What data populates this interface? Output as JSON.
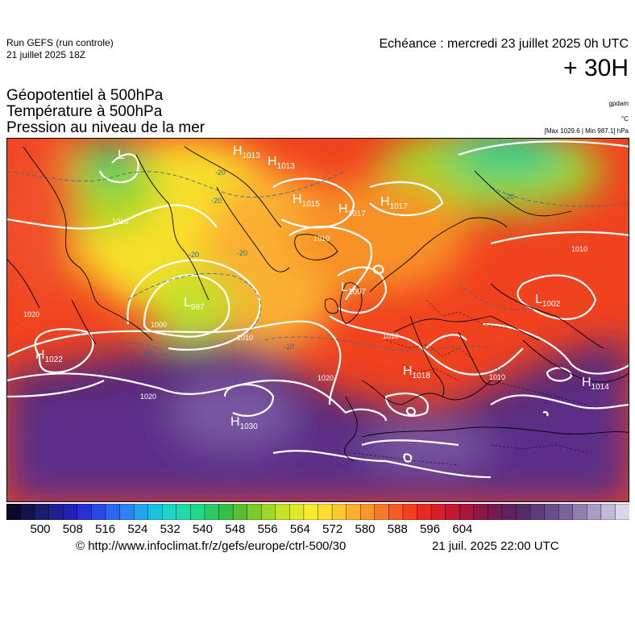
{
  "header": {
    "run_title": "Run GEFS (run controle)",
    "run_date": "21 juillet 2025 18Z",
    "valid_time": "Echéance : mercredi 23 juillet 2025 0h UTC",
    "lead_time": "+ 30H"
  },
  "fields": {
    "line1": "Géopotentiel à 500hPa",
    "line2": "Température à 500hPa",
    "line3": "Pression au niveau de la mer"
  },
  "units": {
    "gpdam": "gpdam",
    "degc": "°C",
    "pressure_range": "[Max 1029.6 | Min 987.1] hPa"
  },
  "map": {
    "pressure_centers": [
      {
        "type": "H",
        "value": "1013"
      },
      {
        "type": "H",
        "value": "1013"
      },
      {
        "type": "H",
        "value": "1015"
      },
      {
        "type": "H",
        "value": "1017"
      },
      {
        "type": "H",
        "value": "1017"
      },
      {
        "type": "L",
        "value": "987"
      },
      {
        "type": "L",
        "value": "1007"
      },
      {
        "type": "L",
        "value": "1002"
      },
      {
        "type": "H",
        "value": "1022"
      },
      {
        "type": "H",
        "value": "1030"
      },
      {
        "type": "H",
        "value": "1018"
      },
      {
        "type": "H",
        "value": "1014"
      },
      {
        "type": "L",
        "value": ""
      }
    ],
    "isobar_labels": [
      "1010",
      "1010",
      "1010",
      "1010",
      "1010",
      "1010",
      "1020",
      "1020",
      "1020",
      "1000"
    ],
    "isotherm_labels": [
      "-20",
      "-20",
      "-20",
      "-20",
      "-20",
      "-10",
      "-10",
      "-10"
    ]
  },
  "colorbar": {
    "tick_labels": [
      "500",
      "508",
      "516",
      "524",
      "532",
      "540",
      "548",
      "556",
      "564",
      "572",
      "580",
      "588",
      "596",
      "604"
    ],
    "colors": [
      "#0a0a28",
      "#14144a",
      "#1c1c6e",
      "#202092",
      "#2020b4",
      "#2830d2",
      "#2a48e6",
      "#2c66f2",
      "#2a84f6",
      "#22a4f0",
      "#1cc0e0",
      "#1cd6c8",
      "#1edcaa",
      "#22d888",
      "#2ac868",
      "#38be48",
      "#58c030",
      "#7ccc2a",
      "#a0d828",
      "#c4e22a",
      "#e0e82a",
      "#f6ec2c",
      "#fce030",
      "#fcc830",
      "#fab02e",
      "#f8962a",
      "#f67a26",
      "#f45c24",
      "#f04022",
      "#e82a22",
      "#d81e28",
      "#c41830",
      "#a8163c",
      "#8c1848",
      "#741a54",
      "#62205e",
      "#582c6a",
      "#5c3c7a",
      "#684e8a",
      "#7a649c",
      "#9080b0",
      "#a89cc4",
      "#c2b8d8",
      "#dcd4ea"
    ]
  },
  "footer": {
    "url": "© http://www.infoclimat.fr/z/gefs/europe/ctrl-500/30",
    "made_at": "21 juil. 2025 22:00 UTC"
  }
}
